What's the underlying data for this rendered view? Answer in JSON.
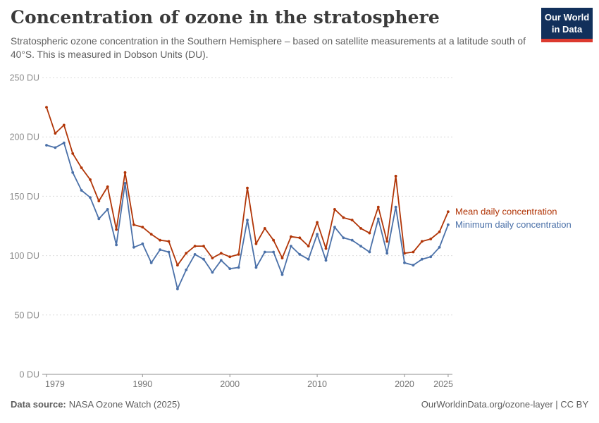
{
  "header": {
    "title": "Concentration of ozone in the stratosphere",
    "subtitle": "Stratospheric ozone concentration in the Southern Hemisphere – based on satellite measurements at a latitude south of 40°S. This is measured in Dobson Units (DU)."
  },
  "logo": {
    "line1": "Our World",
    "line2": "in Data",
    "background_color": "#12305B",
    "bar_color": "#DC3A2F"
  },
  "chart_data": {
    "type": "line",
    "title": "Concentration of ozone in the stratosphere",
    "xlabel": "",
    "ylabel": "Dobson Units (DU)",
    "x": [
      1979,
      1980,
      1981,
      1982,
      1983,
      1984,
      1985,
      1986,
      1987,
      1988,
      1989,
      1990,
      1991,
      1992,
      1993,
      1994,
      1995,
      1996,
      1997,
      1998,
      1999,
      2000,
      2001,
      2002,
      2003,
      2004,
      2005,
      2006,
      2007,
      2008,
      2009,
      2010,
      2011,
      2012,
      2013,
      2014,
      2015,
      2016,
      2017,
      2018,
      2019,
      2020,
      2021,
      2022,
      2023,
      2024,
      2025
    ],
    "series": [
      {
        "name": "Mean daily concentration",
        "color": "#B13507",
        "values": [
          225,
          203,
          210,
          186,
          174,
          164,
          146,
          158,
          122,
          170,
          126,
          124,
          118,
          113,
          112,
          92,
          102,
          108,
          108,
          98,
          102,
          99,
          101,
          157,
          110,
          123,
          113,
          98,
          116,
          115,
          108,
          128,
          106,
          139,
          132,
          130,
          123,
          119,
          141,
          112,
          167,
          102,
          103,
          112,
          114,
          120,
          137
        ]
      },
      {
        "name": "Minimum daily concentration",
        "color": "#4A70A8",
        "values": [
          193,
          191,
          195,
          170,
          155,
          149,
          131,
          139,
          109,
          161,
          107,
          110,
          94,
          105,
          103,
          72,
          88,
          101,
          97,
          86,
          96,
          89,
          90,
          130,
          90,
          103,
          103,
          84,
          108,
          101,
          97,
          118,
          96,
          124,
          115,
          113,
          108,
          103,
          131,
          102,
          141,
          94,
          92,
          97,
          99,
          107,
          126
        ]
      }
    ],
    "ylim": [
      0,
      250
    ],
    "yticks": [
      0,
      50,
      100,
      150,
      200,
      250
    ],
    "ytick_suffix": " DU",
    "xticks": [
      1979,
      1990,
      2000,
      2010,
      2020,
      2025
    ],
    "grid": "horizontal-dashed",
    "legend_position": "right-of-line-ends"
  },
  "footer": {
    "source_label": "Data source:",
    "source_value": "NASA Ozone Watch (2025)",
    "credit": "OurWorldinData.org/ozone-layer | CC BY"
  }
}
